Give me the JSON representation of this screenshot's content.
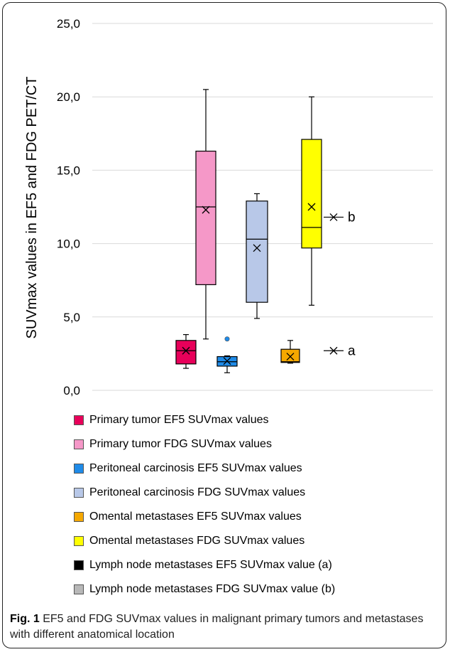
{
  "chart_data": {
    "type": "box",
    "ylabel": "SUVmax values in EF5 and FDG PET/CT",
    "ylim": [
      0,
      25
    ],
    "yticks": [
      "0,0",
      "5,0",
      "10,0",
      "15,0",
      "20,0",
      "25,0"
    ],
    "ytick_values": [
      0,
      5,
      10,
      15,
      20,
      25
    ],
    "grid": true,
    "legend_placement": "bottom",
    "boxes": [
      {
        "name": "Primary tumor   EF5 SUVmax values",
        "color": "#e8005a",
        "min": 1.5,
        "q1": 1.8,
        "median": 2.7,
        "q3": 3.4,
        "max": 3.8,
        "mean": 2.7,
        "outliers": []
      },
      {
        "name": "Primary tumor FDG SUVmax values",
        "color": "#f598c8",
        "min": 3.5,
        "q1": 7.2,
        "median": 12.5,
        "q3": 16.3,
        "max": 20.5,
        "mean": 12.3,
        "outliers": []
      },
      {
        "name": "Peritoneal carcinosis EF5 SUVmax values",
        "color": "#1f8be8",
        "min": 1.2,
        "q1": 1.65,
        "median": 1.95,
        "q3": 2.3,
        "max": 2.35,
        "mean": 2.0,
        "outliers": [
          3.5
        ]
      },
      {
        "name": "Peritoneal carcinosis FDG SUVmax values",
        "color": "#b8c8e8",
        "min": 4.9,
        "q1": 6.0,
        "median": 10.3,
        "q3": 12.9,
        "max": 13.4,
        "mean": 9.7,
        "outliers": []
      },
      {
        "name": "Omental metastases EF5 SUVmax values",
        "color": "#f5a800",
        "min": 1.85,
        "q1": 1.9,
        "median": 1.95,
        "q3": 2.8,
        "max": 3.4,
        "mean": 2.3,
        "outliers": []
      },
      {
        "name": "Omental metastases FDG SUVmax values",
        "color": "#ffff00",
        "min": 5.8,
        "q1": 9.7,
        "median": 11.1,
        "q3": 17.1,
        "max": 20.0,
        "mean": 12.5,
        "outliers": []
      }
    ],
    "points": [
      {
        "name": "Lymph node metastases EF5 SUVmax value (a)",
        "value": 2.7,
        "annotation": "a"
      },
      {
        "name": "Lymph node metastases FDG SUVmax value (b)",
        "value": 11.8,
        "annotation": "b"
      }
    ]
  },
  "legend": [
    {
      "label": "Primary tumor   EF5 SUVmax values",
      "color": "#e8005a"
    },
    {
      "label": "Primary tumor FDG SUVmax values",
      "color": "#f598c8"
    },
    {
      "label": "Peritoneal carcinosis EF5 SUVmax values",
      "color": "#1f8be8"
    },
    {
      "label": "Peritoneal carcinosis FDG SUVmax values",
      "color": "#b8c8e8"
    },
    {
      "label": "Omental metastases EF5 SUVmax values",
      "color": "#f5a800"
    },
    {
      "label": "Omental metastases FDG SUVmax values",
      "color": "#ffff00"
    },
    {
      "label": "Lymph node metastases EF5 SUVmax value (a)",
      "color": "#000000"
    },
    {
      "label": "Lymph node metastases FDG SUVmax value (b)",
      "color": "#b8b8b8"
    }
  ],
  "caption": {
    "fig_label": "Fig. 1",
    "text": " EF5 and FDG SUVmax values in malignant primary tumors and metastases with different anatomical location"
  }
}
